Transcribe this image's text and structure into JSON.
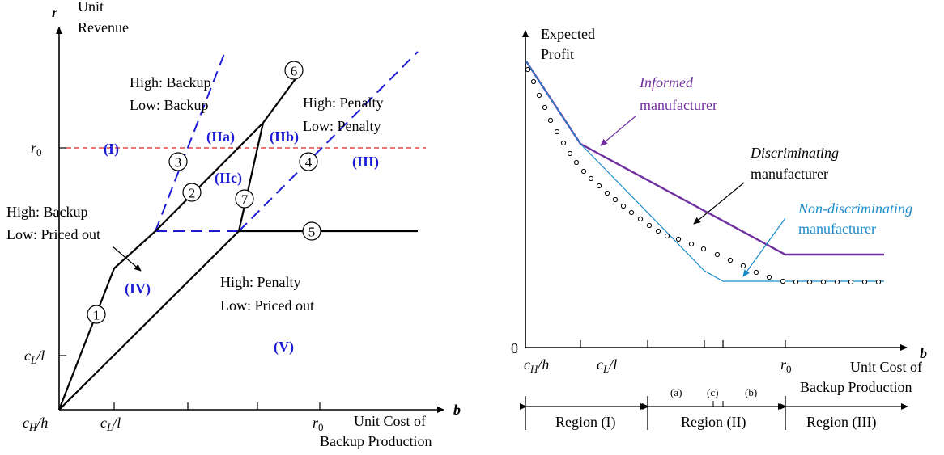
{
  "left": {
    "axis_r": "r",
    "axis_r_caption": [
      "Unit",
      "Revenue"
    ],
    "axis_b": "b",
    "axis_b_caption": [
      "Unit Cost of",
      "Backup Production"
    ],
    "origin": "c_H/h",
    "origin_main": "c",
    "origin_sub": "H",
    "origin_tail": "/h",
    "x_tick_cl": "c_L/l",
    "x_tick_cl_main": "c",
    "x_tick_cl_sub": "L",
    "x_tick_cl_tail": "/l",
    "x_tick_r0": "r_0",
    "x_tick_r0_main": "r",
    "x_tick_r0_sub": "0",
    "y_tick_cl_main": "c",
    "y_tick_cl_sub": "L",
    "y_tick_cl_tail": "/l",
    "y_tick_r0_main": "r",
    "y_tick_r0_sub": "0",
    "regions": [
      "(I)",
      "(IIa)",
      "(IIb)",
      "(IIc)",
      "(III)",
      "(IV)",
      "(V)"
    ],
    "annotations": {
      "backup_backup": [
        "High: Backup",
        "Low: Backup"
      ],
      "penalty_penalty": [
        "High: Penalty",
        "Low: Penalty"
      ],
      "backup_priced": [
        "High: Backup",
        "Low: Priced out"
      ],
      "penalty_priced": [
        "High: Penalty",
        "Low: Priced out"
      ]
    },
    "curve_labels": [
      "1",
      "2",
      "3",
      "4",
      "5",
      "6",
      "7"
    ]
  },
  "right": {
    "axis_y_caption": [
      "Expected",
      "Profit"
    ],
    "y_zero": "0",
    "axis_b": "b",
    "axis_b_caption": [
      "Unit Cost of",
      "Backup Production"
    ],
    "x_tick_ch_main": "c",
    "x_tick_ch_sub": "H",
    "x_tick_ch_tail": "/h",
    "x_tick_cl_main": "c",
    "x_tick_cl_sub": "L",
    "x_tick_cl_tail": "/l",
    "x_tick_r0_main": "r",
    "x_tick_r0_sub": "0",
    "sub_ticks": [
      "(a)",
      "(c)",
      "(b)"
    ],
    "series_labels": {
      "informed": [
        "Informed",
        "manufacturer"
      ],
      "discriminating": [
        "Discriminating",
        "manufacturer"
      ],
      "non_discriminating": [
        "Non-discriminating",
        "manufacturer"
      ]
    },
    "regions": [
      "Region (I)",
      "Region (II)",
      "Region (III)"
    ],
    "colors": {
      "informed": "#7030a0",
      "non_discriminating": "#1a8ccc",
      "region_blue": "#1b1bd6",
      "r0_line": "#e02020"
    }
  }
}
